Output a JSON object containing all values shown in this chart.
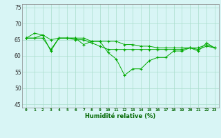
{
  "xlabel": "Humidité relative (%)",
  "ylabel": "",
  "bg_color": "#d8f5f5",
  "grid_color": "#aaddcc",
  "line_color": "#00aa00",
  "marker_color": "#00aa00",
  "xlim": [
    -0.5,
    23.5
  ],
  "ylim": [
    44,
    76
  ],
  "yticks": [
    45,
    50,
    55,
    60,
    65,
    70,
    75
  ],
  "xticks": [
    0,
    1,
    2,
    3,
    4,
    5,
    6,
    7,
    8,
    9,
    10,
    11,
    12,
    13,
    14,
    15,
    16,
    17,
    18,
    19,
    20,
    21,
    22,
    23
  ],
  "lines": [
    [
      65.5,
      67.0,
      66.5,
      61.5,
      65.5,
      65.5,
      65.5,
      63.5,
      64.5,
      64.5,
      61.0,
      59.0,
      54.0,
      56.0,
      56.0,
      58.5,
      59.5,
      59.5,
      61.5,
      61.5,
      62.5,
      61.5,
      64.0,
      62.5
    ],
    [
      65.5,
      65.5,
      66.5,
      65.0,
      65.5,
      65.5,
      65.5,
      65.5,
      64.5,
      64.5,
      64.5,
      64.5,
      63.5,
      63.5,
      63.0,
      63.0,
      62.5,
      62.5,
      62.5,
      62.5,
      62.5,
      62.0,
      63.0,
      62.5
    ],
    [
      65.5,
      65.5,
      65.5,
      62.0,
      65.5,
      65.5,
      65.0,
      65.0,
      64.0,
      63.0,
      62.0,
      62.0,
      62.0,
      62.0,
      62.0,
      62.0,
      62.0,
      62.0,
      62.0,
      62.0,
      62.5,
      62.5,
      63.5,
      62.5
    ]
  ],
  "xlabel_fontsize": 6.0,
  "xtick_fontsize": 4.5,
  "ytick_fontsize": 5.5
}
